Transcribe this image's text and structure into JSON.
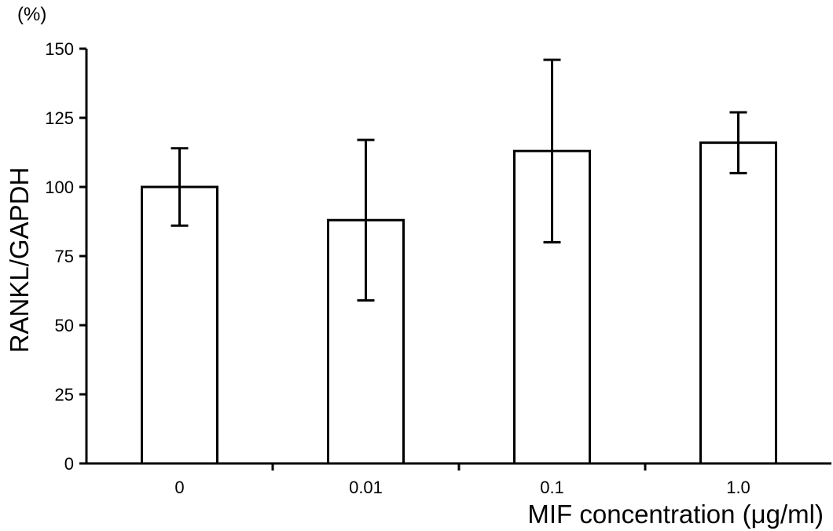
{
  "chart_data": {
    "type": "bar",
    "categories": [
      "0",
      "0.01",
      "0.1",
      "1.0"
    ],
    "values": [
      100,
      88,
      113,
      116
    ],
    "error_low": [
      86,
      59,
      80,
      105
    ],
    "error_high": [
      114,
      117,
      146,
      127
    ],
    "xlabel": "MIF concentration (μg/ml)",
    "ylabel": "RANKL/GAPDH",
    "y_unit": "(%)",
    "ylim": [
      0,
      150
    ],
    "yticks": [
      0,
      25,
      50,
      75,
      100,
      125,
      150
    ],
    "grid": false,
    "colors": {
      "bar_fill": "#ffffff",
      "bar_stroke": "#000000"
    }
  }
}
